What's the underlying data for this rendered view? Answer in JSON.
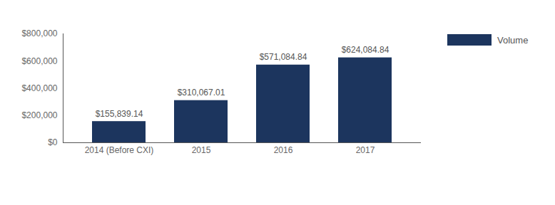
{
  "chart_data": {
    "type": "bar",
    "categories": [
      "2014 (Before CXI)",
      "2015",
      "2016",
      "2017"
    ],
    "series": [
      {
        "name": "Volume",
        "color": "#1c355e",
        "values": [
          155839.14,
          310067.01,
          571084.84,
          624084.84
        ],
        "value_labels": [
          "$155,839.14",
          "$310,067.01",
          "$571,084.84",
          "$624,084.84"
        ]
      }
    ],
    "ylim": [
      0,
      800000
    ],
    "yticks": [
      {
        "value": 0,
        "label": "$0"
      },
      {
        "value": 200000,
        "label": "$200,000"
      },
      {
        "value": 400000,
        "label": "$400,000"
      },
      {
        "value": 600000,
        "label": "$600,000"
      },
      {
        "value": 800000,
        "label": "$800,000"
      }
    ],
    "grid": false,
    "data_labels": true,
    "legend": "top-right"
  }
}
